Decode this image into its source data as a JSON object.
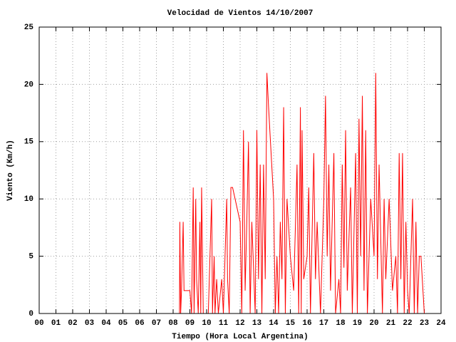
{
  "chart_data": {
    "type": "line",
    "title": "Velocidad de Vientos 14/10/2007",
    "x_label": "Tiempo (Hora Local Argentina)",
    "y_label": "Viento (Km/h)",
    "xlim": [
      0,
      24
    ],
    "ylim": [
      0,
      25
    ],
    "xticks": [
      {
        "value": 0,
        "label": "00"
      },
      {
        "value": 1,
        "label": "01"
      },
      {
        "value": 2,
        "label": "02"
      },
      {
        "value": 3,
        "label": "03"
      },
      {
        "value": 4,
        "label": "04"
      },
      {
        "value": 5,
        "label": "05"
      },
      {
        "value": 6,
        "label": "06"
      },
      {
        "value": 7,
        "label": "07"
      },
      {
        "value": 8,
        "label": "08"
      },
      {
        "value": 9,
        "label": "09"
      },
      10,
      11,
      12,
      13,
      14,
      15,
      16,
      17,
      18,
      19,
      20,
      21,
      22,
      23,
      24
    ],
    "yticks": [
      0,
      5,
      10,
      15,
      20,
      25
    ],
    "grid": true,
    "x": [
      8.38,
      8.4,
      8.45,
      8.5,
      8.6,
      8.65,
      9.0,
      9.1,
      9.2,
      9.25,
      9.35,
      9.4,
      9.5,
      9.6,
      9.65,
      9.7,
      9.8,
      10.1,
      10.2,
      10.3,
      10.35,
      10.45,
      10.5,
      10.6,
      10.7,
      10.9,
      11.0,
      11.1,
      11.2,
      11.25,
      11.35,
      11.45,
      11.55,
      12.0,
      12.1,
      12.2,
      12.3,
      12.4,
      12.5,
      12.6,
      12.7,
      12.9,
      13.0,
      13.1,
      13.2,
      13.3,
      13.4,
      13.5,
      13.6,
      13.7,
      14.0,
      14.1,
      14.2,
      14.3,
      14.4,
      14.5,
      14.6,
      14.7,
      14.8,
      15.0,
      15.2,
      15.4,
      15.5,
      15.6,
      15.65,
      15.7,
      15.8,
      16.0,
      16.1,
      16.2,
      16.4,
      16.5,
      16.6,
      16.8,
      17.0,
      17.1,
      17.2,
      17.3,
      17.4,
      17.6,
      17.7,
      17.9,
      18.0,
      18.1,
      18.2,
      18.3,
      18.4,
      18.6,
      18.7,
      18.9,
      19.0,
      19.1,
      19.2,
      19.3,
      19.4,
      19.5,
      19.6,
      19.8,
      20.0,
      20.1,
      20.2,
      20.3,
      20.5,
      20.6,
      20.7,
      20.9,
      21.1,
      21.3,
      21.4,
      21.5,
      21.6,
      21.7,
      21.8,
      21.9,
      22.0,
      22.1,
      22.3,
      22.4,
      22.5,
      22.6,
      22.7,
      22.8,
      23.0
    ],
    "series": [
      {
        "color": "#ff0000",
        "values": [
          0,
          8,
          0,
          2,
          8,
          2,
          2,
          0,
          11,
          0,
          10,
          3,
          0,
          8,
          0,
          11,
          0,
          0,
          5,
          10,
          0,
          5,
          0,
          3,
          0,
          3,
          0,
          5,
          10,
          3,
          0,
          11,
          11,
          8,
          0,
          16,
          2,
          8,
          15,
          0,
          8,
          0,
          16,
          3,
          13,
          0,
          13,
          3,
          21,
          18,
          10,
          0,
          5,
          0,
          8,
          3,
          18,
          0,
          10,
          5,
          2,
          13,
          0,
          18,
          0,
          16,
          3,
          5,
          11,
          0,
          14,
          3,
          8,
          0,
          10,
          19,
          5,
          13,
          2,
          14,
          0,
          3,
          0,
          13,
          4,
          16,
          2,
          11,
          0,
          14,
          0,
          17,
          5,
          19,
          2,
          16,
          0,
          10,
          5,
          21,
          3,
          13,
          0,
          10,
          3,
          10,
          2,
          5,
          0,
          14,
          3,
          14,
          0,
          8,
          2,
          0,
          10,
          0,
          8,
          0,
          5,
          5,
          0
        ]
      }
    ]
  }
}
